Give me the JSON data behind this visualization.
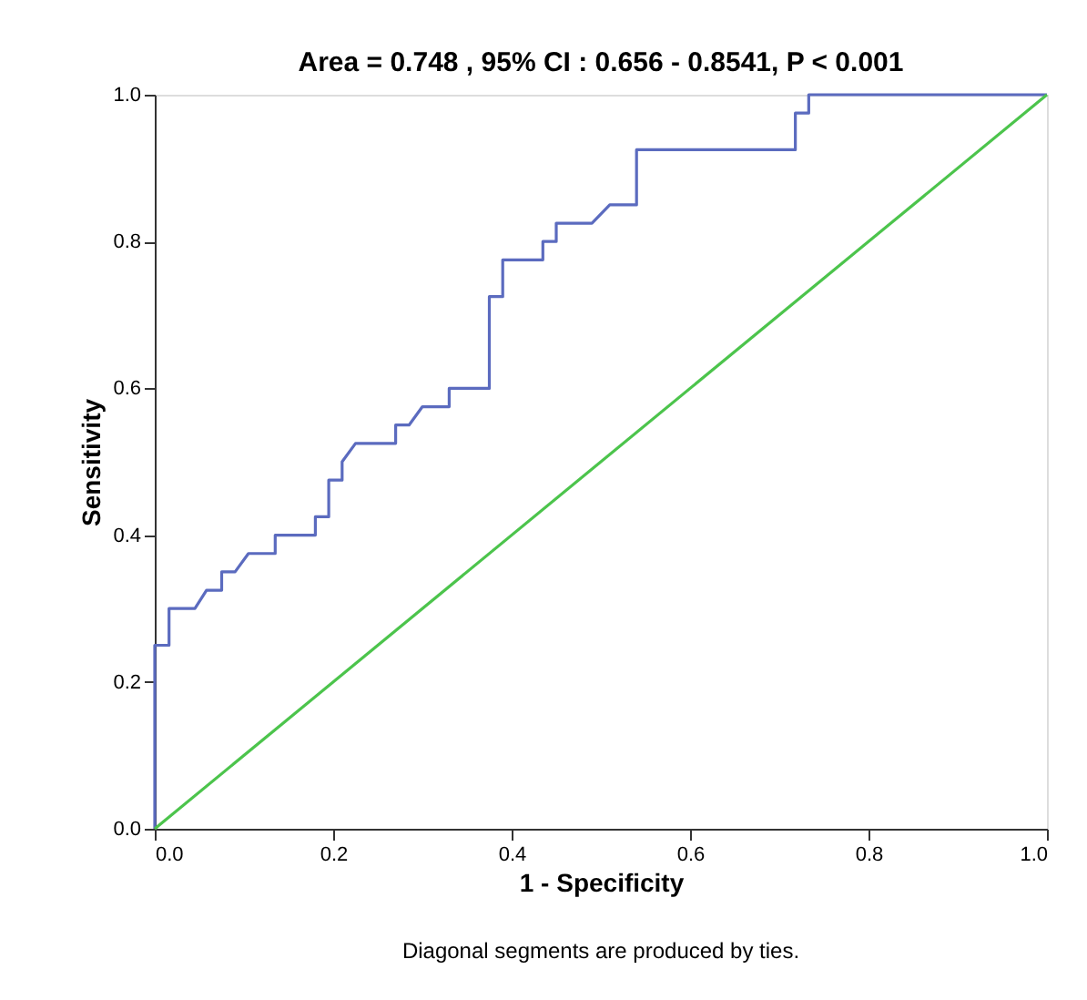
{
  "chart_data": {
    "type": "line",
    "title": "Area = 0.748 , 95% CI : 0.656 - 0.8541, P < 0.001",
    "xlabel": "1 - Specificity",
    "ylabel": "Sensitivity",
    "xlim": [
      0,
      1
    ],
    "ylim": [
      0,
      1
    ],
    "xticks": [
      {
        "value": 0,
        "label": "0.0"
      },
      0.2,
      0.4,
      0.6,
      0.8,
      {
        "value": 1,
        "label": "1.0"
      }
    ],
    "yticks": [
      {
        "value": 0,
        "label": "0.0"
      },
      0.2,
      0.4,
      0.6,
      0.8,
      {
        "value": 1,
        "label": "1.0"
      }
    ],
    "grid": false,
    "marker": "none",
    "line_style": "solid",
    "series": [
      {
        "color": "#5b6bbf",
        "x": [
          0,
          0,
          0.016,
          0.016,
          0.045,
          0.058,
          0.075,
          0.075,
          0.09,
          0.105,
          0.135,
          0.135,
          0.18,
          0.18,
          0.195,
          0.195,
          0.21,
          0.21,
          0.225,
          0.27,
          0.27,
          0.285,
          0.3,
          0.33,
          0.33,
          0.375,
          0.375,
          0.39,
          0.39,
          0.435,
          0.435,
          0.45,
          0.45,
          0.49,
          0.51,
          0.54,
          0.54,
          0.718,
          0.718,
          0.733,
          0.733,
          1
        ],
        "values": [
          0,
          0.25,
          0.25,
          0.3,
          0.3,
          0.325,
          0.325,
          0.35,
          0.35,
          0.375,
          0.375,
          0.4,
          0.4,
          0.425,
          0.425,
          0.475,
          0.475,
          0.5,
          0.525,
          0.525,
          0.55,
          0.55,
          0.575,
          0.575,
          0.6,
          0.6,
          0.725,
          0.725,
          0.775,
          0.775,
          0.8,
          0.8,
          0.825,
          0.825,
          0.85,
          0.85,
          0.925,
          0.925,
          0.975,
          0.975,
          1,
          1
        ]
      },
      {
        "color": "#4cc44c",
        "x": [
          0,
          1
        ],
        "values": [
          0,
          1
        ]
      }
    ],
    "annotations": [
      "Diagonal segments are produced by ties."
    ]
  }
}
